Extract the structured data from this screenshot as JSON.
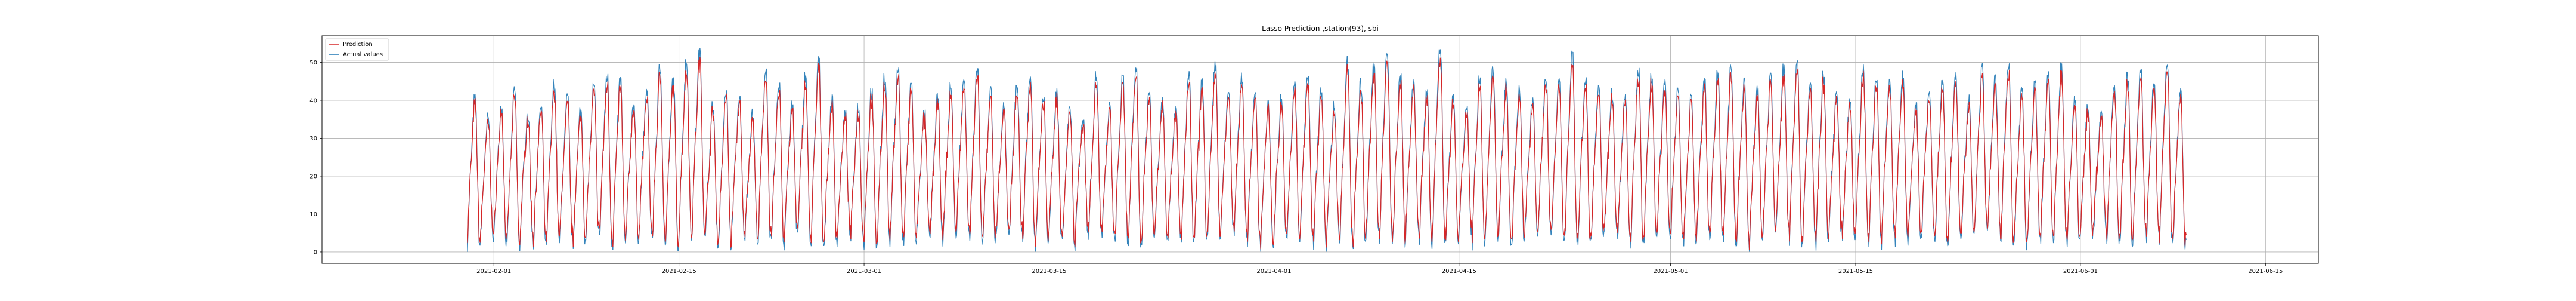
{
  "chart_data": {
    "type": "line",
    "title": "Lasso Prediction ,station(93), sbi",
    "xlabel": "",
    "ylabel": "",
    "x_range": [
      "2021-01-19",
      "2021-06-19"
    ],
    "x_data_range": [
      "2021-01-30",
      "2021-06-09"
    ],
    "ylim": [
      -3,
      57
    ],
    "x_ticks": [
      "2021-02-01",
      "2021-02-15",
      "2021-03-01",
      "2021-03-15",
      "2021-04-01",
      "2021-04-15",
      "2021-05-01",
      "2021-05-15",
      "2021-06-01",
      "2021-06-15"
    ],
    "y_ticks": [
      0,
      10,
      20,
      30,
      40,
      50
    ],
    "grid": true,
    "legend_position": "top-left",
    "series": [
      {
        "name": "Prediction",
        "color": "#d62728",
        "note": "hourly values, series follows actual values closely (daily cycles roughly 0–50)"
      },
      {
        "name": "Actual values",
        "color": "#1f77b4"
      }
    ],
    "daily_peaks": [
      40,
      35,
      38,
      42,
      36,
      38,
      44,
      40,
      37,
      43,
      46,
      45,
      39,
      42,
      48,
      45,
      50,
      52,
      38,
      42,
      40,
      36,
      48,
      44,
      38,
      46,
      50,
      40,
      36,
      38,
      42,
      46,
      48,
      44,
      36,
      40,
      43,
      45,
      48,
      42,
      38,
      44,
      46,
      40,
      42,
      38,
      35,
      46,
      38,
      45,
      48,
      42,
      40,
      38,
      46,
      44,
      49,
      42,
      46,
      42,
      38,
      40,
      44,
      46,
      42,
      38,
      50,
      44,
      48,
      52,
      46,
      44,
      42,
      54,
      40,
      38,
      46,
      48,
      44,
      42,
      40,
      46,
      44,
      52,
      46,
      44,
      42,
      40,
      48,
      46,
      44,
      42,
      40,
      44,
      46,
      48,
      44,
      42,
      46,
      48,
      50,
      44,
      46,
      42,
      40,
      48,
      46,
      44,
      46,
      38,
      42,
      44,
      46,
      40,
      48,
      46,
      50,
      42,
      44,
      46,
      48,
      40,
      38,
      36,
      44,
      46,
      48,
      44,
      50,
      42,
      38,
      40
    ],
    "daily_troughs": [
      2,
      4,
      3,
      1,
      5,
      2,
      3,
      4,
      2,
      6,
      3,
      2,
      4,
      5,
      3,
      2,
      4,
      6,
      3,
      2,
      5,
      4,
      3,
      2,
      6,
      4,
      2,
      3,
      5,
      4,
      2,
      3,
      4,
      2,
      5,
      3,
      4,
      6,
      2,
      3,
      4,
      5,
      2,
      3,
      4,
      2,
      6,
      5,
      3,
      4,
      2,
      3,
      5,
      4,
      2,
      3,
      4,
      6,
      5,
      3,
      2,
      4,
      3,
      5,
      2,
      4,
      3,
      2,
      5,
      4,
      3,
      6,
      2,
      4,
      3,
      5,
      2,
      4,
      3,
      2,
      6,
      5,
      4,
      3,
      2,
      4,
      5,
      3,
      2,
      4,
      6,
      3,
      2,
      5,
      4,
      3,
      2,
      4,
      5,
      6,
      3,
      4,
      2,
      5,
      3,
      4,
      2,
      6,
      3,
      4,
      5,
      2,
      3,
      4,
      6,
      5,
      3,
      2,
      4,
      3,
      5,
      2,
      4,
      6,
      3,
      2,
      5,
      4,
      3,
      2,
      4,
      5
    ]
  }
}
